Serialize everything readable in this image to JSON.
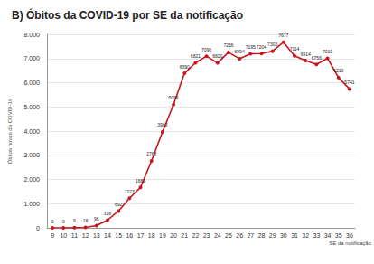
{
  "chart_data": {
    "type": "line",
    "title": "B) Óbitos da COVID-19 por SE da notificação",
    "y_label": "Óbitos novos da COVID-19",
    "x_label": "SE da notificação",
    "categories": [
      "9",
      "10",
      "11",
      "12",
      "13",
      "14",
      "15",
      "16",
      "17",
      "18",
      "19",
      "20",
      "21",
      "22",
      "23",
      "24",
      "25",
      "26",
      "27",
      "28",
      "29",
      "30",
      "31",
      "32",
      "33",
      "34",
      "35",
      "36"
    ],
    "values": [
      0,
      0,
      9,
      18,
      96,
      318,
      692,
      1223,
      1669,
      2768,
      3963,
      5096,
      6390,
      6821,
      7096,
      6820,
      7256,
      6994,
      7195,
      7204,
      7303,
      7677,
      7114,
      6914,
      6756,
      7010,
      6210,
      5741
    ],
    "color": "#c8161d",
    "marker": "circle",
    "ylim": [
      0,
      8000
    ],
    "yticks": [
      0,
      {
        "value": 1000,
        "label": "1.000"
      },
      {
        "value": 2000,
        "label": "2.000"
      },
      {
        "value": 3000,
        "label": "3.000"
      },
      {
        "value": 4000,
        "label": "4.000"
      },
      {
        "value": 5000,
        "label": "5.000"
      },
      {
        "value": 6000,
        "label": "6.000"
      },
      {
        "value": 7000,
        "label": "7.000"
      },
      {
        "value": 8000,
        "label": "8.000"
      }
    ],
    "grid": true,
    "data_labels": true
  }
}
